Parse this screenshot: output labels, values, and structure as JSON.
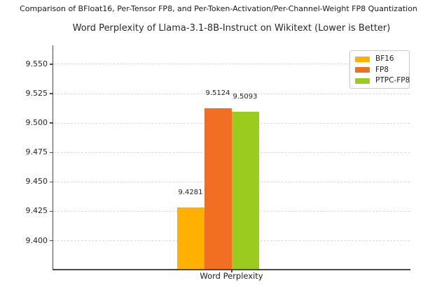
{
  "suptitle": "Comparison of BFloat16, Per-Tensor FP8, and Per-Token-Activation/Per-Channel-Weight FP8 Quantization",
  "chart_data": {
    "type": "bar",
    "title": "Word Perplexity of Llama-3.1-8B-Instruct on Wikitext (Lower is Better)",
    "categories": [
      "Word Perplexity"
    ],
    "xlabel": "Word Perplexity",
    "ylabel": "",
    "series": [
      {
        "name": "BF16",
        "values": [
          9.4281
        ],
        "data_label": "9.4281",
        "color": "#FFB000"
      },
      {
        "name": "FP8",
        "values": [
          9.5124
        ],
        "data_label": "9.5124",
        "color": "#F26E22"
      },
      {
        "name": "PTPC-FP8",
        "values": [
          9.5093
        ],
        "data_label": "9.5093",
        "color": "#9CCB20"
      }
    ],
    "ylim": [
      9.376,
      9.566
    ],
    "yticks": [
      9.4,
      9.425,
      9.45,
      9.475,
      9.5,
      9.525,
      9.55
    ],
    "grid": true,
    "grid_style": "dashed",
    "legend_position": "upper right",
    "axis_color": "#4a4a4a",
    "grid_color": "#dadada",
    "background_color": "#ffffff"
  }
}
